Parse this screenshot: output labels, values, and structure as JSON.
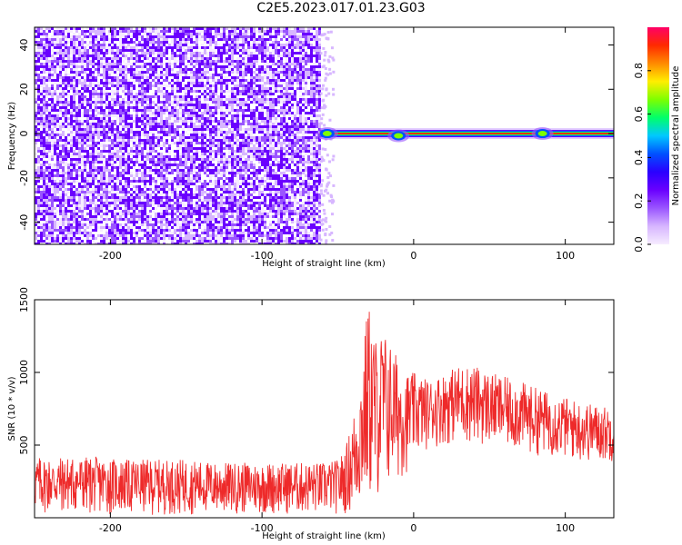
{
  "title": "C2E5.2023.017.01.23.G03",
  "colors": {
    "axis": "#000000",
    "snr_line": "#ee2a2a",
    "colormap": [
      "#f6ecff",
      "#d7b6ff",
      "#9a55ff",
      "#6a00ff",
      "#2a00ff",
      "#0050ff",
      "#00c8ff",
      "#00ff6a",
      "#7dff00",
      "#ffee00",
      "#ff8a00",
      "#ff2a00",
      "#ff0066"
    ]
  },
  "chart_data": [
    {
      "type": "heatmap",
      "xlabel": "Height of straight line (km)",
      "ylabel": "Frequency (Hz)",
      "xlim": [
        -250,
        132
      ],
      "ylim": [
        -50,
        48
      ],
      "xticks": [
        -200,
        -100,
        0,
        100
      ],
      "yticks": [
        -40,
        -20,
        0,
        20,
        40
      ],
      "noise_region_x": [
        -250,
        -62
      ],
      "signal_band": {
        "x": [
          -62,
          132
        ],
        "frequency": 0,
        "normalized_amplitude": 0.95
      },
      "signal_blobs": [
        {
          "x": -57,
          "frequency": 0,
          "amplitude": 0.75
        },
        {
          "x": -10,
          "frequency": -1,
          "amplitude": 0.7
        },
        {
          "x": 85,
          "frequency": 0,
          "amplitude": 0.5
        }
      ],
      "colorbar": {
        "label": "Normalized spectral amplitude",
        "range": [
          0,
          1
        ],
        "ticks": [
          0.0,
          0.2,
          0.4,
          0.6,
          0.8
        ]
      }
    },
    {
      "type": "line",
      "xlabel": "Height of straight line (km)",
      "ylabel": "SNR (10 * v/v)",
      "xlim": [
        -250,
        132
      ],
      "ylim": [
        0,
        1500
      ],
      "xticks": [
        -200,
        -100,
        0,
        100
      ],
      "yticks": [
        500,
        1000,
        1500
      ],
      "series": [
        {
          "x": [
            -250,
            -230,
            -210,
            -190,
            -170,
            -150,
            -130,
            -110,
            -90,
            -70,
            -60,
            -50,
            -45,
            -40,
            -35,
            -30,
            -25,
            -20,
            -15,
            -10,
            -5,
            0,
            10,
            20,
            30,
            40,
            50,
            60,
            70,
            80,
            90,
            100,
            110,
            120,
            132
          ],
          "envelope_low": [
            20,
            20,
            20,
            20,
            20,
            20,
            20,
            20,
            20,
            20,
            20,
            20,
            20,
            20,
            40,
            60,
            100,
            150,
            200,
            250,
            300,
            400,
            480,
            500,
            520,
            500,
            490,
            470,
            450,
            430,
            420,
            400,
            380,
            380,
            380
          ],
          "envelope_high": [
            420,
            420,
            420,
            400,
            400,
            400,
            380,
            380,
            380,
            380,
            380,
            400,
            480,
            700,
            1000,
            1500,
            1250,
            1300,
            1200,
            1100,
            1000,
            1000,
            950,
            1000,
            1050,
            1050,
            1000,
            970,
            940,
            900,
            860,
            830,
            800,
            780,
            760
          ]
        }
      ]
    }
  ]
}
